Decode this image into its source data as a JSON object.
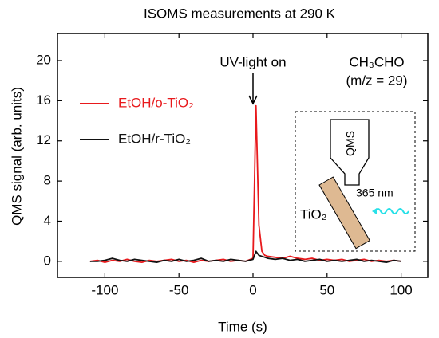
{
  "chart_data": {
    "type": "line",
    "title": "ISOMS measurements at 290 K",
    "xlabel": "Time  (s)",
    "ylabel": "QMS signal  (arb. units)",
    "x": [
      -110,
      -105,
      -100,
      -95,
      -90,
      -85,
      -80,
      -75,
      -70,
      -65,
      -60,
      -55,
      -50,
      -45,
      -40,
      -35,
      -30,
      -25,
      -20,
      -15,
      -10,
      -5,
      0,
      2,
      4,
      6,
      8,
      10,
      15,
      20,
      25,
      30,
      35,
      40,
      45,
      50,
      55,
      60,
      65,
      70,
      75,
      80,
      85,
      90,
      95,
      100
    ],
    "series": [
      {
        "name": "EtOH/o-TiO₂",
        "color": "#e8191c",
        "values": [
          0.0,
          0.1,
          -0.1,
          0.1,
          0.0,
          0.2,
          0.0,
          -0.1,
          0.1,
          0.0,
          0.1,
          0.2,
          0.0,
          0.1,
          -0.1,
          0.1,
          0.0,
          0.1,
          0.2,
          0.0,
          0.1,
          0.0,
          0.3,
          15.5,
          3.6,
          1.0,
          0.6,
          0.5,
          0.4,
          0.3,
          0.5,
          0.3,
          0.2,
          0.3,
          0.1,
          0.2,
          0.1,
          0.2,
          0.0,
          0.1,
          0.2,
          0.0,
          0.1,
          0.0,
          0.1,
          0.0
        ]
      },
      {
        "name": "EtOH/r-TiO₂",
        "color": "#111111",
        "values": [
          0.0,
          0.0,
          0.1,
          0.3,
          0.1,
          0.0,
          0.2,
          0.1,
          0.0,
          -0.1,
          0.1,
          0.0,
          0.2,
          0.0,
          0.1,
          0.3,
          0.0,
          0.1,
          0.0,
          0.2,
          0.1,
          0.0,
          0.2,
          1.0,
          0.6,
          0.5,
          0.4,
          0.3,
          0.2,
          0.3,
          0.1,
          0.2,
          0.0,
          0.1,
          0.2,
          0.0,
          0.1,
          0.0,
          0.1,
          0.2,
          0.0,
          0.1,
          0.0,
          -0.1,
          0.1,
          0.0
        ]
      }
    ],
    "xlim": [
      -132,
      118
    ],
    "ylim": [
      -1.6,
      22.7
    ],
    "xticks": [
      -100,
      -50,
      0,
      50,
      100
    ],
    "yticks": [
      0,
      4,
      8,
      12,
      16,
      20
    ],
    "annotations": {
      "uv": "UV-light on",
      "species": "CH₃CHO",
      "mz": "(m/z = 29)"
    },
    "inset": {
      "detector": "QMS",
      "sample": "TiO₂",
      "wavelength": "365 nm"
    }
  }
}
